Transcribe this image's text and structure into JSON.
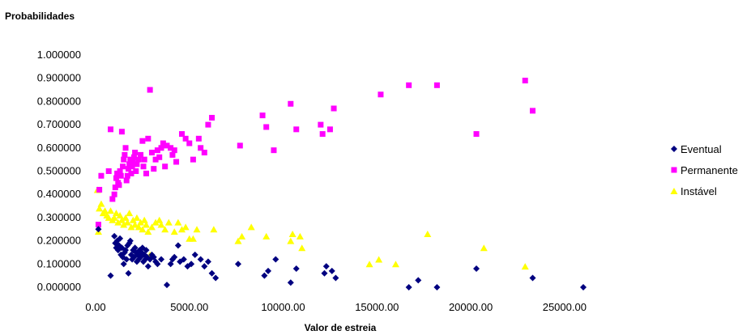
{
  "chart_data": {
    "type": "scatter",
    "title": "",
    "ylabel": "Probabilidades",
    "xlabel": "Valor de estreia",
    "xlim": [
      0,
      26000
    ],
    "ylim": [
      0,
      1
    ],
    "x_ticks": [
      0,
      5000,
      10000,
      15000,
      20000,
      25000
    ],
    "x_tick_labels": [
      "0.00",
      "5000.00",
      "10000.00",
      "15000.00",
      "20000.00",
      "25000.00"
    ],
    "y_ticks": [
      0,
      0.1,
      0.2,
      0.3,
      0.4,
      0.5,
      0.6,
      0.7,
      0.8,
      0.9,
      1.0
    ],
    "y_tick_labels": [
      "0.000000",
      "0.100000",
      "0.200000",
      "0.300000",
      "0.400000",
      "0.500000",
      "0.600000",
      "0.700000",
      "0.800000",
      "0.900000",
      "1.000000"
    ],
    "grid": false,
    "legend_position": "right",
    "series": [
      {
        "name": "Eventual",
        "marker": "diamond",
        "color": "#000080",
        "points": [
          [
            150,
            0.25
          ],
          [
            800,
            0.05
          ],
          [
            1000,
            0.22
          ],
          [
            1050,
            0.19
          ],
          [
            1100,
            0.17
          ],
          [
            1150,
            0.2
          ],
          [
            1200,
            0.16
          ],
          [
            1250,
            0.18
          ],
          [
            1300,
            0.21
          ],
          [
            1350,
            0.14
          ],
          [
            1400,
            0.17
          ],
          [
            1450,
            0.13
          ],
          [
            1500,
            0.1
          ],
          [
            1550,
            0.15
          ],
          [
            1600,
            0.16
          ],
          [
            1650,
            0.12
          ],
          [
            1700,
            0.18
          ],
          [
            1750,
            0.06
          ],
          [
            1800,
            0.19
          ],
          [
            1850,
            0.2
          ],
          [
            1900,
            0.14
          ],
          [
            1950,
            0.12
          ],
          [
            2000,
            0.16
          ],
          [
            2050,
            0.13
          ],
          [
            2100,
            0.17
          ],
          [
            2150,
            0.15
          ],
          [
            2200,
            0.11
          ],
          [
            2250,
            0.14
          ],
          [
            2300,
            0.12
          ],
          [
            2350,
            0.16
          ],
          [
            2400,
            0.13
          ],
          [
            2450,
            0.15
          ],
          [
            2500,
            0.17
          ],
          [
            2550,
            0.11
          ],
          [
            2600,
            0.14
          ],
          [
            2650,
            0.12
          ],
          [
            2700,
            0.16
          ],
          [
            2750,
            0.13
          ],
          [
            2800,
            0.09
          ],
          [
            2900,
            0.12
          ],
          [
            3000,
            0.14
          ],
          [
            3100,
            0.13
          ],
          [
            3200,
            0.11
          ],
          [
            3300,
            0.1
          ],
          [
            3500,
            0.12
          ],
          [
            3800,
            0.01
          ],
          [
            4000,
            0.1
          ],
          [
            4100,
            0.12
          ],
          [
            4200,
            0.13
          ],
          [
            4400,
            0.18
          ],
          [
            4500,
            0.11
          ],
          [
            4700,
            0.12
          ],
          [
            4900,
            0.09
          ],
          [
            5100,
            0.1
          ],
          [
            5300,
            0.14
          ],
          [
            5600,
            0.12
          ],
          [
            5800,
            0.09
          ],
          [
            6000,
            0.11
          ],
          [
            6200,
            0.06
          ],
          [
            6400,
            0.04
          ],
          [
            7600,
            0.1
          ],
          [
            9000,
            0.05
          ],
          [
            9200,
            0.07
          ],
          [
            9600,
            0.12
          ],
          [
            10400,
            0.02
          ],
          [
            10700,
            0.08
          ],
          [
            12200,
            0.06
          ],
          [
            12300,
            0.09
          ],
          [
            12600,
            0.07
          ],
          [
            12800,
            0.04
          ],
          [
            16700,
            0.0
          ],
          [
            17200,
            0.03
          ],
          [
            18200,
            0.0
          ],
          [
            20300,
            0.08
          ],
          [
            23300,
            0.04
          ],
          [
            26000,
            0.0
          ]
        ]
      },
      {
        "name": "Permanente",
        "marker": "square",
        "color": "#FF00FF",
        "points": [
          [
            150,
            0.27
          ],
          [
            200,
            0.42
          ],
          [
            300,
            0.48
          ],
          [
            700,
            0.5
          ],
          [
            800,
            0.68
          ],
          [
            900,
            0.38
          ],
          [
            1000,
            0.4
          ],
          [
            1050,
            0.43
          ],
          [
            1100,
            0.47
          ],
          [
            1150,
            0.49
          ],
          [
            1200,
            0.45
          ],
          [
            1250,
            0.44
          ],
          [
            1300,
            0.5
          ],
          [
            1350,
            0.48
          ],
          [
            1400,
            0.67
          ],
          [
            1450,
            0.52
          ],
          [
            1500,
            0.55
          ],
          [
            1550,
            0.57
          ],
          [
            1600,
            0.6
          ],
          [
            1650,
            0.46
          ],
          [
            1700,
            0.48
          ],
          [
            1750,
            0.51
          ],
          [
            1800,
            0.53
          ],
          [
            1850,
            0.55
          ],
          [
            1900,
            0.49
          ],
          [
            1950,
            0.52
          ],
          [
            2000,
            0.54
          ],
          [
            2050,
            0.56
          ],
          [
            2100,
            0.58
          ],
          [
            2150,
            0.5
          ],
          [
            2200,
            0.53
          ],
          [
            2300,
            0.55
          ],
          [
            2400,
            0.57
          ],
          [
            2500,
            0.63
          ],
          [
            2550,
            0.52
          ],
          [
            2600,
            0.55
          ],
          [
            2700,
            0.49
          ],
          [
            2800,
            0.64
          ],
          [
            2900,
            0.85
          ],
          [
            3000,
            0.58
          ],
          [
            3100,
            0.51
          ],
          [
            3200,
            0.55
          ],
          [
            3300,
            0.59
          ],
          [
            3400,
            0.56
          ],
          [
            3500,
            0.6
          ],
          [
            3600,
            0.62
          ],
          [
            3700,
            0.52
          ],
          [
            3800,
            0.61
          ],
          [
            4000,
            0.6
          ],
          [
            4100,
            0.57
          ],
          [
            4200,
            0.59
          ],
          [
            4300,
            0.54
          ],
          [
            4600,
            0.66
          ],
          [
            4800,
            0.64
          ],
          [
            5000,
            0.62
          ],
          [
            5200,
            0.55
          ],
          [
            5500,
            0.64
          ],
          [
            5600,
            0.6
          ],
          [
            5800,
            0.58
          ],
          [
            6000,
            0.7
          ],
          [
            6200,
            0.73
          ],
          [
            7700,
            0.61
          ],
          [
            8900,
            0.74
          ],
          [
            9100,
            0.69
          ],
          [
            9500,
            0.59
          ],
          [
            10400,
            0.79
          ],
          [
            10700,
            0.68
          ],
          [
            12000,
            0.7
          ],
          [
            12100,
            0.66
          ],
          [
            12500,
            0.68
          ],
          [
            12700,
            0.77
          ],
          [
            15200,
            0.83
          ],
          [
            16700,
            0.87
          ],
          [
            18200,
            0.87
          ],
          [
            20300,
            0.66
          ],
          [
            22900,
            0.89
          ],
          [
            23300,
            0.76
          ]
        ]
      },
      {
        "name": "Instável",
        "marker": "triangle",
        "color": "#FFFF00",
        "points": [
          [
            100,
            0.42
          ],
          [
            150,
            0.24
          ],
          [
            200,
            0.34
          ],
          [
            300,
            0.36
          ],
          [
            400,
            0.32
          ],
          [
            500,
            0.33
          ],
          [
            600,
            0.31
          ],
          [
            700,
            0.3
          ],
          [
            800,
            0.33
          ],
          [
            900,
            0.29
          ],
          [
            1000,
            0.3
          ],
          [
            1100,
            0.32
          ],
          [
            1200,
            0.28
          ],
          [
            1300,
            0.31
          ],
          [
            1400,
            0.29
          ],
          [
            1500,
            0.27
          ],
          [
            1600,
            0.3
          ],
          [
            1700,
            0.28
          ],
          [
            1800,
            0.32
          ],
          [
            1900,
            0.26
          ],
          [
            2000,
            0.29
          ],
          [
            2100,
            0.27
          ],
          [
            2200,
            0.3
          ],
          [
            2300,
            0.26
          ],
          [
            2400,
            0.28
          ],
          [
            2500,
            0.25
          ],
          [
            2600,
            0.29
          ],
          [
            2700,
            0.27
          ],
          [
            2800,
            0.24
          ],
          [
            2900,
            0.14
          ],
          [
            3000,
            0.26
          ],
          [
            3200,
            0.28
          ],
          [
            3400,
            0.29
          ],
          [
            3500,
            0.27
          ],
          [
            3700,
            0.25
          ],
          [
            3900,
            0.28
          ],
          [
            4200,
            0.24
          ],
          [
            4400,
            0.28
          ],
          [
            4600,
            0.25
          ],
          [
            4800,
            0.26
          ],
          [
            5000,
            0.21
          ],
          [
            5200,
            0.21
          ],
          [
            5400,
            0.25
          ],
          [
            6300,
            0.25
          ],
          [
            7600,
            0.2
          ],
          [
            7800,
            0.22
          ],
          [
            8300,
            0.26
          ],
          [
            9100,
            0.22
          ],
          [
            10400,
            0.2
          ],
          [
            10500,
            0.23
          ],
          [
            10900,
            0.22
          ],
          [
            11000,
            0.17
          ],
          [
            14600,
            0.1
          ],
          [
            15100,
            0.12
          ],
          [
            16000,
            0.1
          ],
          [
            17700,
            0.23
          ],
          [
            20700,
            0.17
          ],
          [
            22900,
            0.09
          ]
        ]
      }
    ]
  }
}
